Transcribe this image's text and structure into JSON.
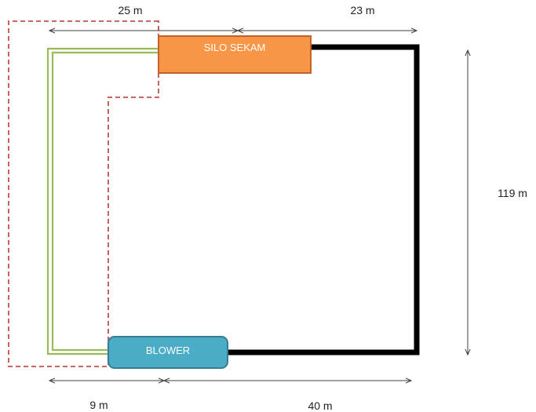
{
  "nodes": {
    "silo": {
      "label": "SILO SEKAM",
      "fill": "#f79646",
      "stroke": "#c0622a"
    },
    "blower": {
      "label": "BLOWER",
      "fill": "#4bacc6",
      "stroke": "#357d92"
    }
  },
  "dimensions": {
    "top_left": "25 m",
    "top_right": "23 m",
    "right_vertical": "119 m",
    "bottom_left": "9 m",
    "bottom_right": "40 m"
  },
  "colors": {
    "pipe_black": "#000000",
    "pipe_green": "#9bbb59",
    "boundary_dashed": "#c0504d",
    "dimension_line": "#404040"
  }
}
